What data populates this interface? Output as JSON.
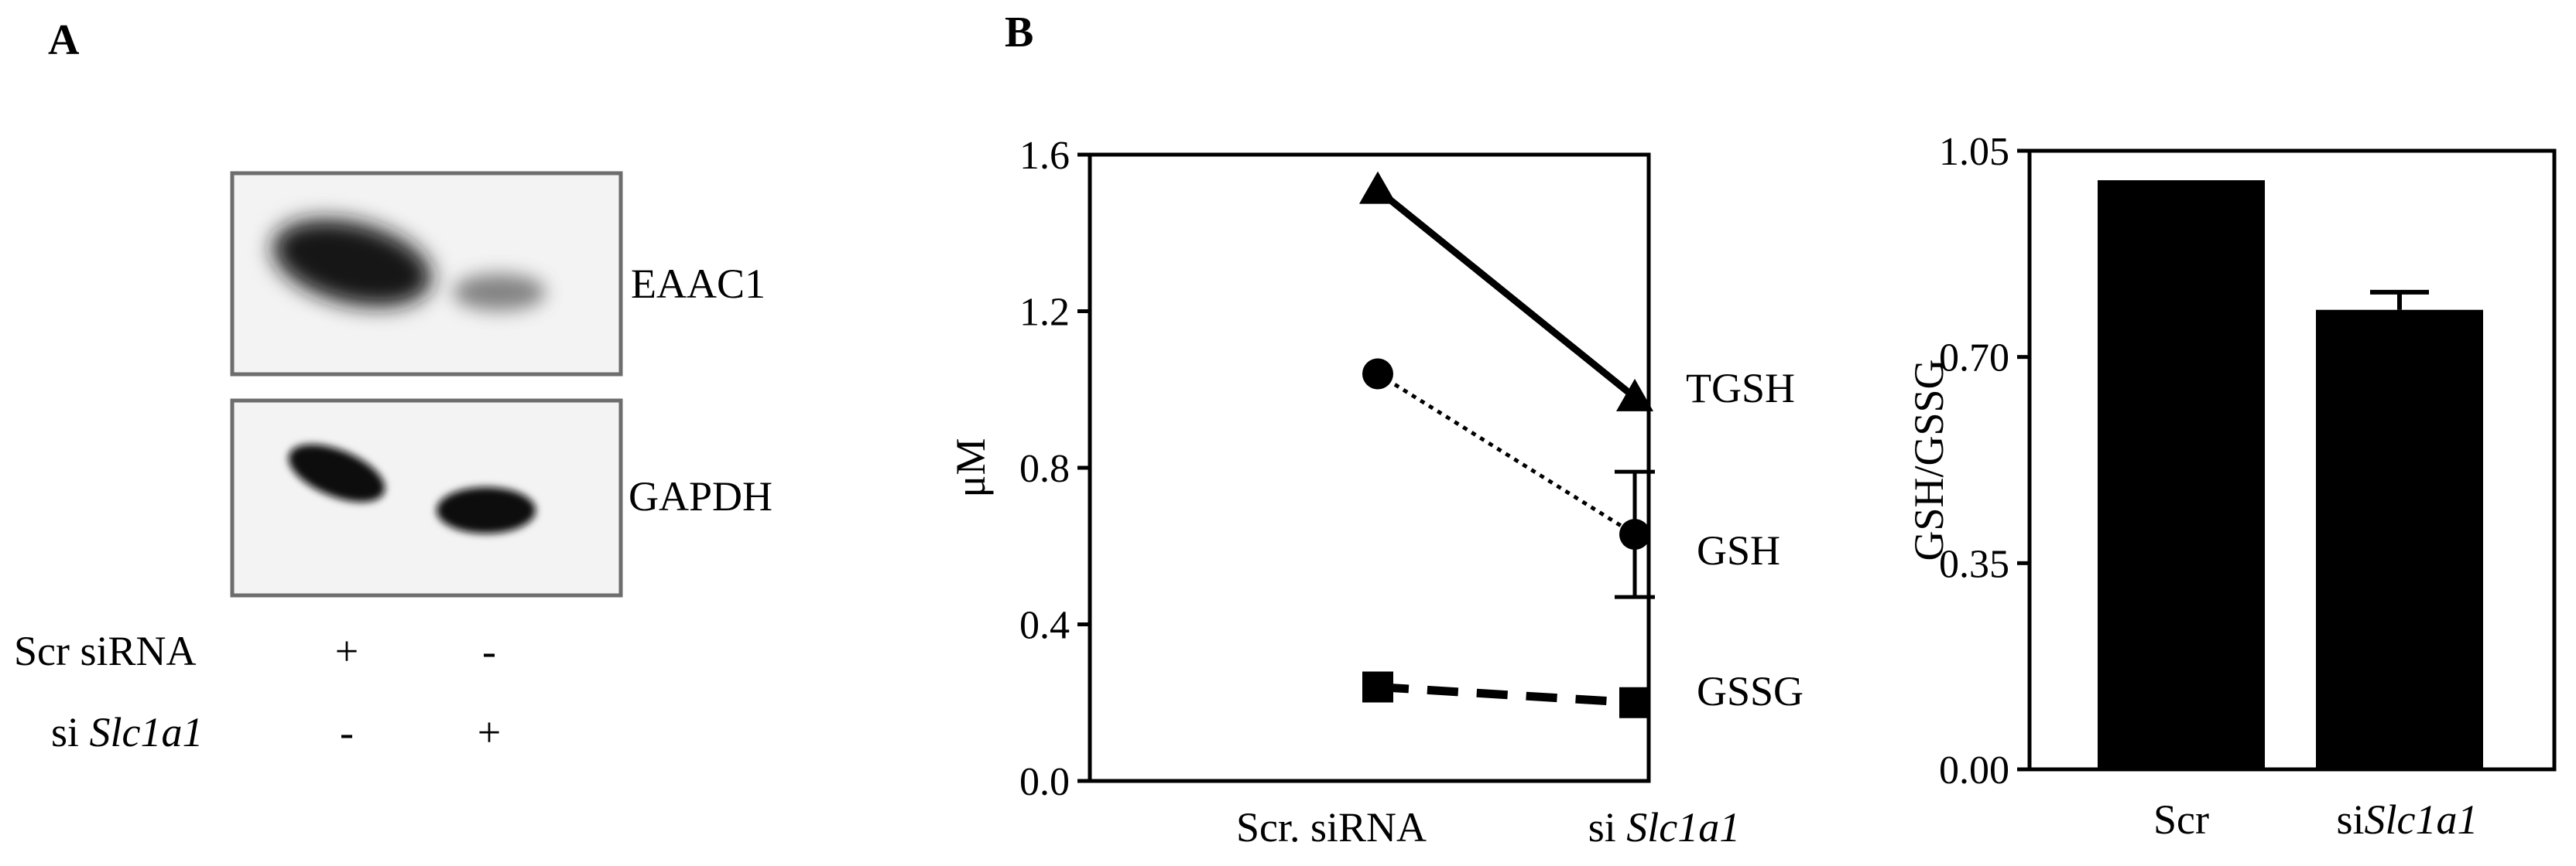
{
  "panels": {
    "a_label": "A",
    "b_label": "B"
  },
  "blot": {
    "bands": [
      {
        "name": "EAAC1",
        "intensity": [
          1.0,
          0.35
        ]
      },
      {
        "name": "GAPDH",
        "intensity": [
          1.0,
          1.0
        ]
      }
    ],
    "rows": [
      {
        "label": "Scr siRNA",
        "label_prefix": "",
        "label_italic": "",
        "signs": [
          "+",
          "-"
        ]
      },
      {
        "label": "",
        "label_prefix": "si ",
        "label_italic": "Slc1a1",
        "signs": [
          "-",
          "+"
        ]
      }
    ]
  },
  "chart_data": [
    {
      "type": "line",
      "xlabel": "",
      "ylabel": "μM",
      "ylim": [
        0.0,
        1.6
      ],
      "yticks": [
        "0.0",
        "0.4",
        "0.8",
        "1.2",
        "1.6"
      ],
      "categories": [
        {
          "prefix": "Scr. siRNA",
          "italic": ""
        },
        {
          "prefix": "si ",
          "italic": "Slc1a1"
        }
      ],
      "series": [
        {
          "name": "TGSH",
          "marker": "triangle",
          "line": "solid",
          "values": [
            1.51,
            0.98
          ],
          "error": [
            0,
            0
          ]
        },
        {
          "name": "GSH",
          "marker": "circle",
          "line": "dotted",
          "values": [
            1.04,
            0.63
          ],
          "error": [
            0,
            0.16
          ]
        },
        {
          "name": "GSSG",
          "marker": "square",
          "line": "dashed",
          "values": [
            0.24,
            0.2
          ],
          "error": [
            0,
            0
          ]
        }
      ]
    },
    {
      "type": "bar",
      "ylabel": "GSH/GSSG",
      "ylim": [
        0.0,
        1.05
      ],
      "yticks": [
        "0.00",
        "0.35",
        "0.70",
        "1.05"
      ],
      "categories": [
        {
          "prefix": "Scr",
          "italic": ""
        },
        {
          "prefix": "si",
          "italic": "Slc1a1"
        }
      ],
      "values": [
        1.0,
        0.78
      ],
      "error": [
        0,
        0.03
      ],
      "color": "#000000"
    }
  ]
}
